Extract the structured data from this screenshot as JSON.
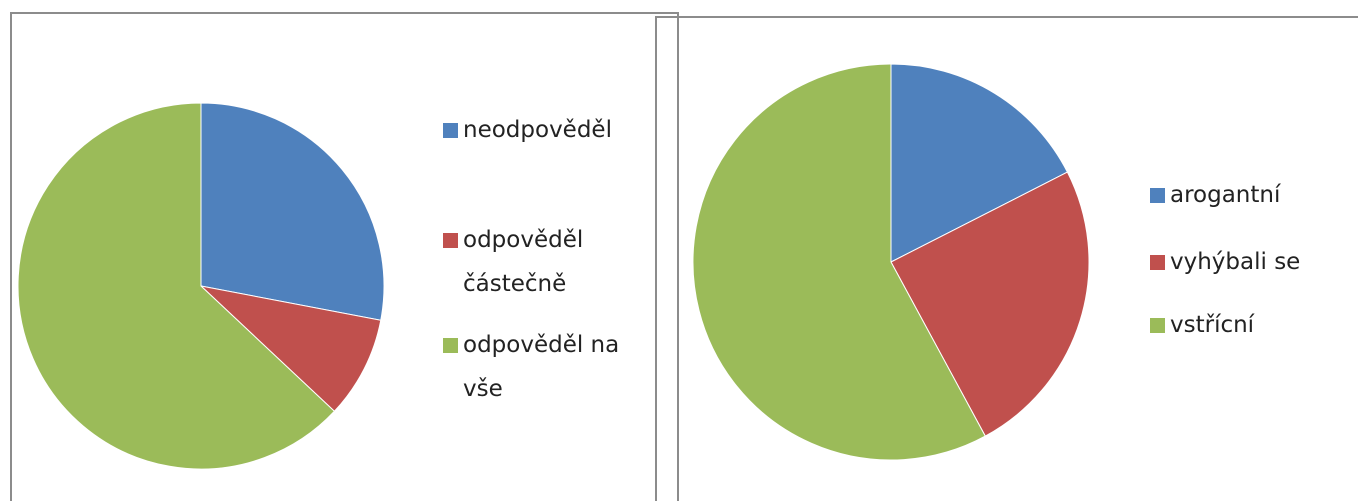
{
  "chart_data": [
    {
      "type": "pie",
      "categories": [
        "neodpověděl",
        "odpověděl částečně",
        "odpověděl na vše"
      ],
      "values": [
        28,
        9,
        63
      ],
      "colors": [
        "#4f81bd",
        "#c0504d",
        "#9bbb59"
      ]
    },
    {
      "type": "pie",
      "categories": [
        "arogantní",
        "vyhýbali se",
        "vstřícní"
      ],
      "values": [
        17.5,
        24.6,
        57.9
      ],
      "colors": [
        "#4f81bd",
        "#c0504d",
        "#9bbb59"
      ]
    }
  ]
}
